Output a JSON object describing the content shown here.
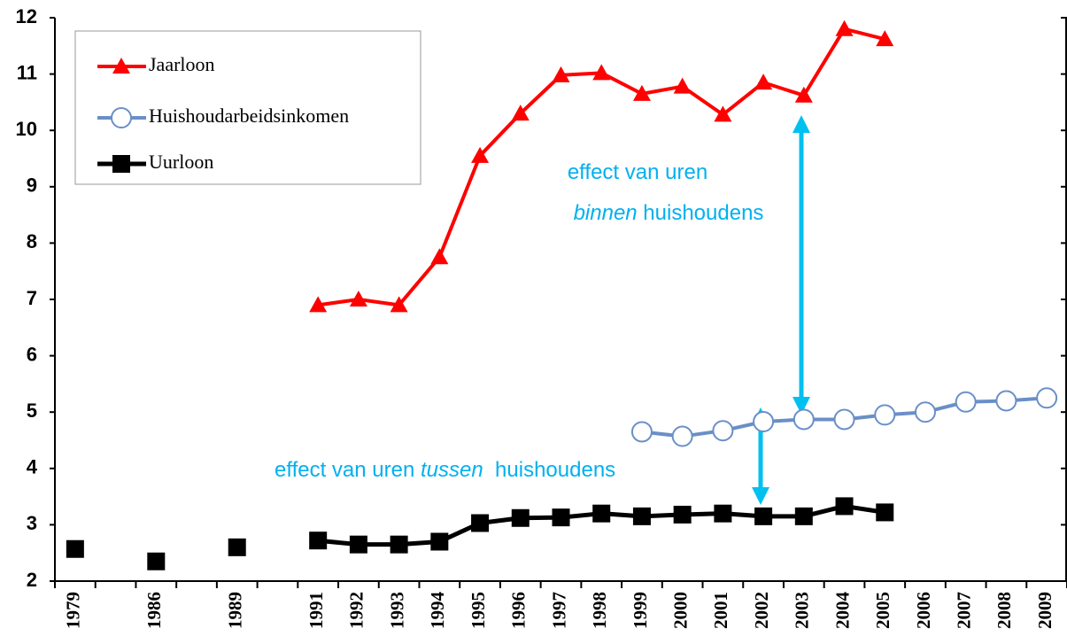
{
  "chart_data": {
    "type": "line",
    "categories": [
      "1979",
      null,
      "1986",
      null,
      "1989",
      null,
      "1991",
      "1992",
      "1993",
      "1994",
      "1995",
      "1996",
      "1997",
      "1998",
      "1999",
      "2000",
      "2001",
      "2002",
      "2003",
      "2004",
      "2005",
      "2006",
      "2007",
      "2008",
      "2009"
    ],
    "series": [
      {
        "name": "Jaarloon",
        "color": "#ff0000",
        "marker": "triangle",
        "values": [
          null,
          null,
          null,
          null,
          null,
          null,
          6.9,
          7.0,
          6.9,
          7.75,
          9.55,
          10.3,
          10.98,
          11.02,
          10.65,
          10.78,
          10.28,
          10.85,
          10.62,
          11.8,
          11.62,
          null,
          null,
          null,
          null
        ]
      },
      {
        "name": "Huishoudarbeidsinkomen",
        "color": "#6a8fc8",
        "marker": "circle",
        "values": [
          null,
          null,
          null,
          null,
          null,
          null,
          null,
          null,
          null,
          null,
          null,
          null,
          null,
          null,
          4.65,
          4.57,
          4.67,
          4.83,
          4.87,
          4.87,
          4.95,
          5.0,
          5.18,
          5.2,
          5.25
        ]
      },
      {
        "name": "Uurloon",
        "color": "#000000",
        "marker": "square",
        "values": [
          2.57,
          null,
          2.35,
          null,
          2.6,
          null,
          2.72,
          2.65,
          2.65,
          2.7,
          3.03,
          3.12,
          3.13,
          3.2,
          3.15,
          3.18,
          3.2,
          3.15,
          3.15,
          3.33,
          3.22,
          null,
          null,
          null,
          null
        ]
      }
    ],
    "ylim": [
      2,
      12
    ],
    "yticks": [
      2,
      3,
      4,
      5,
      6,
      7,
      8,
      9,
      10,
      11,
      12
    ],
    "annotations": [
      {
        "lines": [
          [
            "effect van uren"
          ],
          [
            "binnen",
            " huishoudens"
          ]
        ]
      },
      {
        "lines": [
          [
            "effect van uren ",
            "tussen",
            "  huishoudens"
          ]
        ]
      }
    ]
  }
}
